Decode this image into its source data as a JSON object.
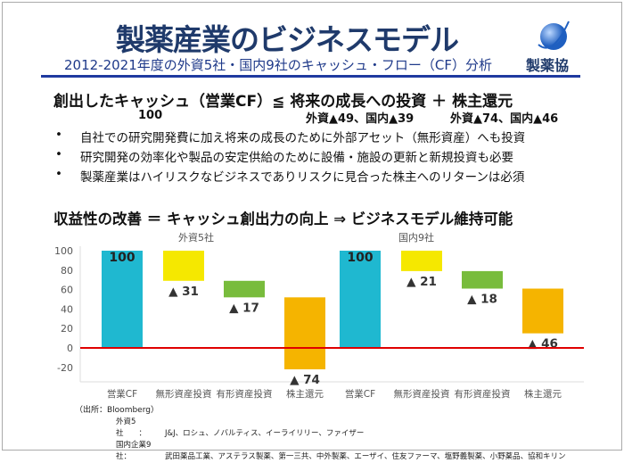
{
  "header": {
    "title": "製薬産業のビジネスモデル",
    "subtitle": "2012-2021年度の外資5社・国内9社のキャッシュ・フロー（CF）分析",
    "logo_text": "製薬協"
  },
  "equation": {
    "text": "創出したキャッシュ（営業CF）≦ 将来の成長への投資 ＋ 株主還元",
    "cf": "100",
    "investment": "外資▲49、国内▲39",
    "return": "外資▲74、国内▲46"
  },
  "bullets": [
    "自社での研究開発費に加え将来の成長のために外部アセット（無形資産）へも投資",
    "研究開発の効率化や製品の安定供給のために設備・施設の更新と新規投資も必要",
    "製薬産業はハイリスクなビジネスでありリスクに見合った株主へのリターンは必須"
  ],
  "headline": "収益性の改善 ＝ キャッシュ創出力の向上 ⇒ ビジネスモデル維持可能",
  "chart_data": {
    "type": "waterfall",
    "ylim": [
      -30,
      105
    ],
    "yticks": [
      -20,
      0,
      20,
      40,
      60,
      80,
      100
    ],
    "groups": [
      {
        "name": "外資5社",
        "categories": [
          "営業CF",
          "無形資産投資",
          "有形資産投資",
          "株主還元"
        ],
        "values": [
          100,
          -31,
          -17,
          -74
        ],
        "labels": [
          "100",
          "▲ 31",
          "▲ 17",
          "▲ 74"
        ]
      },
      {
        "name": "国内9社",
        "categories": [
          "営業CF",
          "無形資産投資",
          "有形資産投資",
          "株主還元"
        ],
        "values": [
          100,
          -21,
          -18,
          -46
        ],
        "labels": [
          "100",
          "▲ 21",
          "▲ 18",
          "▲ 46"
        ]
      }
    ],
    "colors": [
      "#1fb8d0",
      "#f5e800",
      "#78bc3c",
      "#f5b400"
    ],
    "zero_line_color": "#e00000",
    "source": "（出所：Bloomberg）"
  },
  "notes": [
    {
      "label": "外資5社　　：",
      "text": "J&J、ロシュ、ノバルティス、イーライリリー、ファイザー"
    },
    {
      "label": "国内企業9社：",
      "text": "武田薬品工業、アステラス製薬、第一三共、中外製薬、エーザイ、住友ファーマ、塩野義製薬、小野薬品、協和キリン"
    }
  ]
}
